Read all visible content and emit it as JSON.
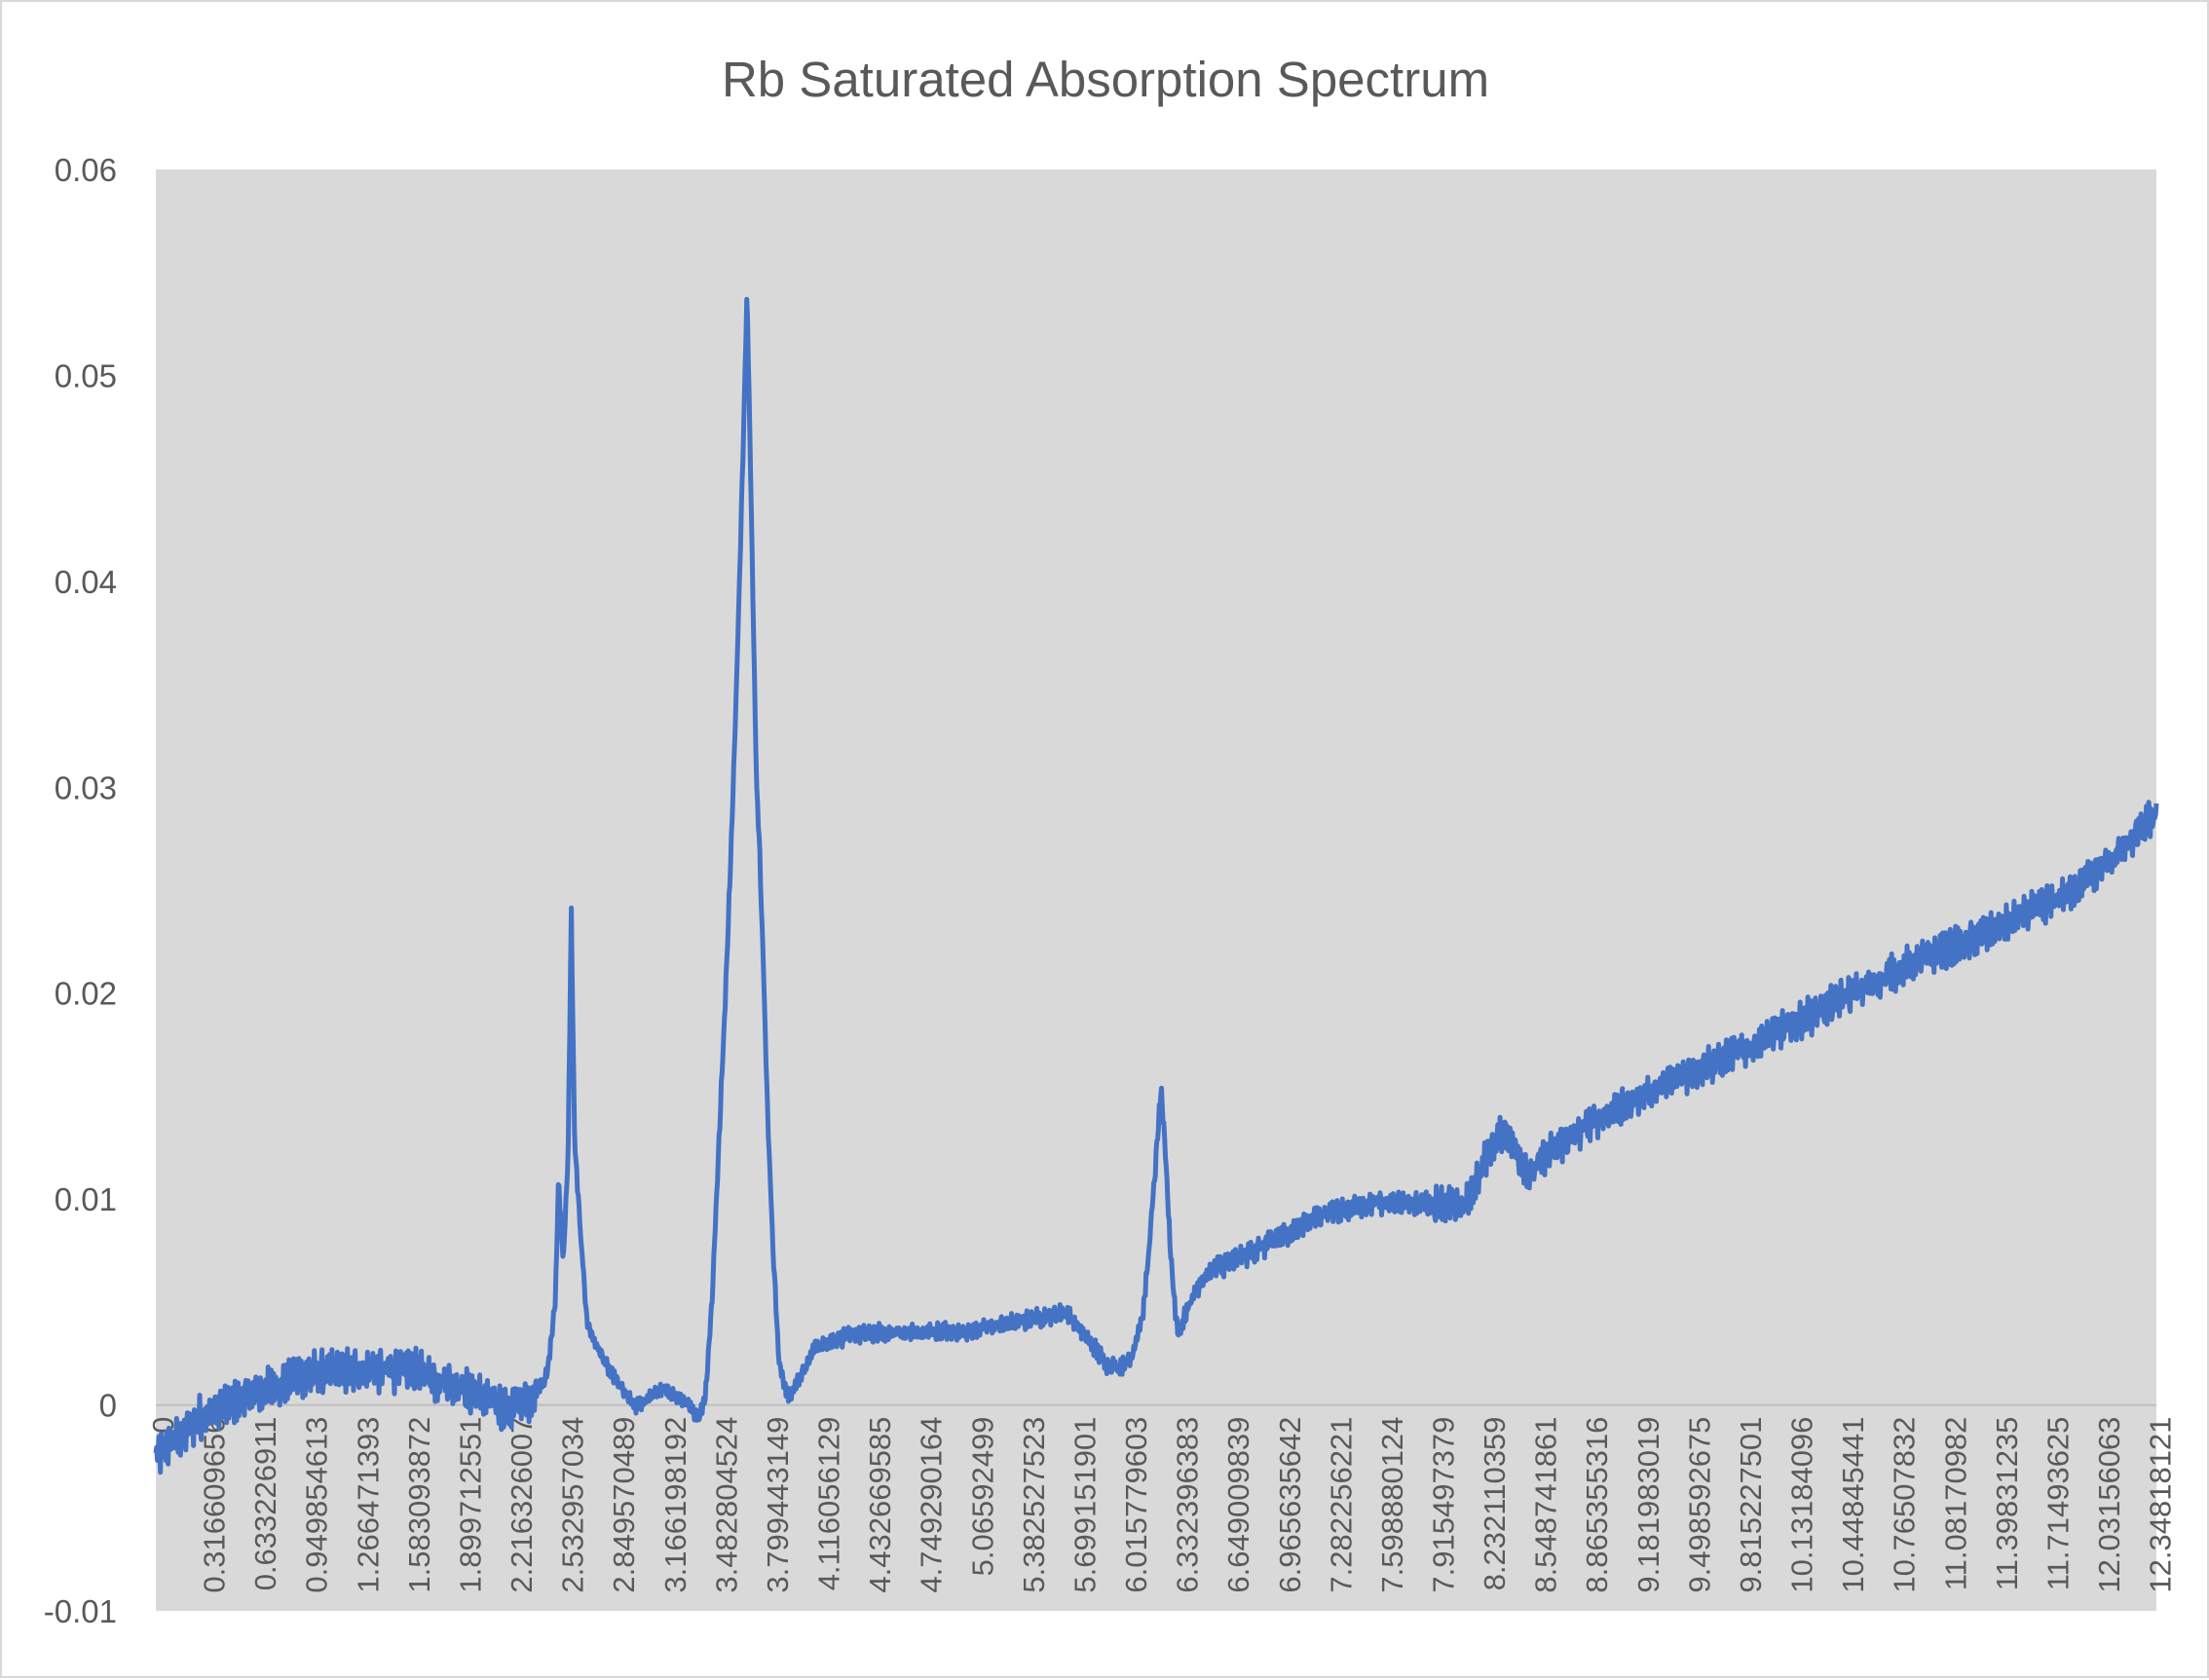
{
  "chart_data": {
    "type": "line",
    "title": "Rb Saturated Absorption Spectrum",
    "xlabel": "",
    "ylabel": "",
    "ylim": [
      -0.01,
      0.06
    ],
    "xlim": [
      0,
      12.52
    ],
    "grid": false,
    "legend": "none",
    "colors": {
      "line": "#4472c4",
      "plot_background": "#d9d9d9",
      "axis": "#bfbfbf",
      "text": "#595959"
    },
    "y_ticks": [
      -0.01,
      0,
      0.01,
      0.02,
      0.03,
      0.04,
      0.05,
      0.06
    ],
    "y_tick_labels": [
      "-0.01",
      "0",
      "0.01",
      "0.02",
      "0.03",
      "0.04",
      "0.05",
      "0.06"
    ],
    "x_tick_labels": [
      "0",
      "0.316609656",
      "0.633226911",
      "0.949854613",
      "1.266471393",
      "1.583093872",
      "1.899712551",
      "2.216326007",
      "2.532957034",
      "2.849570489",
      "3.166198192",
      "3.482804524",
      "3.799443149",
      "4.116056129",
      "4.432669585",
      "4.749290164",
      "5.06592499",
      "5.382527523",
      "5.699151901",
      "6.015779603",
      "6.332396383",
      "6.649009839",
      "6.965635642",
      "7.282256221",
      "7.598880124",
      "7.915497379",
      "8.232110359",
      "8.548741861",
      "8.865355316",
      "9.181983019",
      "9.498592675",
      "9.815227501",
      "10.13184096",
      "10.44845441",
      "10.76507832",
      "11.08170982",
      "11.39831235",
      "11.71493625",
      "12.03156063",
      "12.34818121"
    ],
    "series": [
      {
        "x": [
          0,
          0.3,
          0.6,
          0.95,
          1.27,
          1.58,
          1.9,
          2.2,
          2.35,
          2.45,
          2.5,
          2.52,
          2.55,
          2.58,
          2.6,
          2.62,
          2.66,
          2.7,
          2.75,
          2.85,
          3.0,
          3.17,
          3.3,
          3.4,
          3.44,
          3.48,
          3.52,
          3.56,
          3.6,
          3.63,
          3.66,
          3.7,
          3.73,
          3.76,
          3.78,
          3.79,
          3.8,
          3.81,
          3.83,
          3.86,
          3.9,
          3.96,
          4.02,
          4.08,
          4.12,
          4.18,
          4.3,
          4.5,
          4.75,
          5.07,
          5.38,
          5.7,
          5.85,
          5.95,
          6.02,
          6.1,
          6.18,
          6.22,
          6.26,
          6.29,
          6.32,
          6.35,
          6.38,
          6.4,
          6.45,
          6.5,
          6.6,
          6.8,
          7.0,
          7.3,
          7.6,
          7.9,
          8.2,
          8.35,
          8.45,
          8.55,
          8.6,
          8.7,
          9.0,
          9.5,
          10.0,
          10.5,
          11.0,
          11.5,
          12.0,
          12.35,
          12.52
        ],
        "values": [
          -0.0025,
          -0.0005,
          0.0005,
          0.0015,
          0.0017,
          0.0017,
          0.0009,
          -0.0002,
          0.0003,
          0.0015,
          0.005,
          0.011,
          0.007,
          0.012,
          0.024,
          0.013,
          0.008,
          0.004,
          0.003,
          0.0015,
          -0.0001,
          0.0008,
          0.0002,
          -0.0006,
          0.0005,
          0.005,
          0.012,
          0.019,
          0.027,
          0.034,
          0.042,
          0.054,
          0.042,
          0.03,
          0.027,
          0.024,
          0.022,
          0.019,
          0.014,
          0.008,
          0.002,
          0.0003,
          0.0012,
          0.002,
          0.0028,
          0.003,
          0.0033,
          0.0035,
          0.0035,
          0.0036,
          0.004,
          0.0045,
          0.003,
          0.002,
          0.0018,
          0.0022,
          0.0045,
          0.008,
          0.012,
          0.0153,
          0.012,
          0.0075,
          0.0045,
          0.0035,
          0.0045,
          0.0055,
          0.0065,
          0.0072,
          0.008,
          0.0093,
          0.0098,
          0.0098,
          0.0097,
          0.0125,
          0.0133,
          0.0118,
          0.0112,
          0.0121,
          0.0138,
          0.0158,
          0.0175,
          0.0195,
          0.0215,
          0.023,
          0.025,
          0.0272,
          0.0288
        ]
      }
    ]
  }
}
